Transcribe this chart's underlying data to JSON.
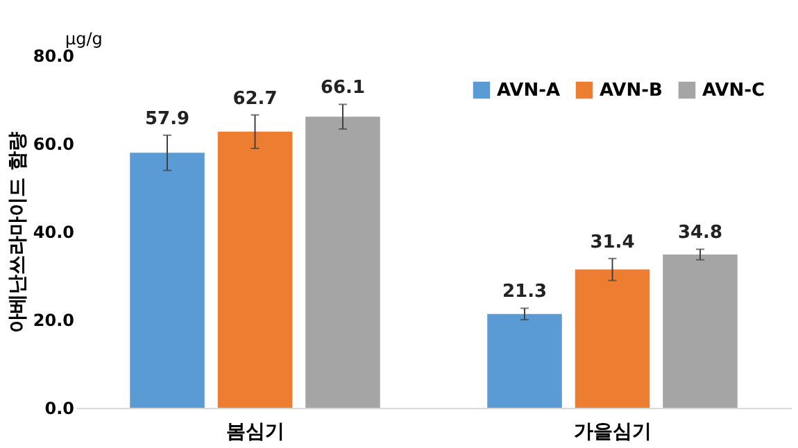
{
  "chart_data": {
    "type": "bar",
    "categories": [
      "봄심기",
      "가을심기"
    ],
    "ylabel": "아베난쓰라마이드 함량",
    "annotations": [
      "μg/g"
    ],
    "series": [
      {
        "name": "AVN-A",
        "color": "#5b9bd5",
        "values": [
          57.9,
          21.3
        ],
        "errors": [
          4.0,
          1.3
        ]
      },
      {
        "name": "AVN-B",
        "color": "#ed7d31",
        "values": [
          62.7,
          31.4
        ],
        "errors": [
          3.8,
          2.5
        ]
      },
      {
        "name": "AVN-C",
        "color": "#a5a5a5",
        "values": [
          66.1,
          34.8
        ],
        "errors": [
          2.8,
          1.2
        ]
      }
    ],
    "ylim": [
      0,
      80
    ],
    "yticks": [
      {
        "value": 0,
        "label": "0.0"
      },
      {
        "value": 20,
        "label": "20.0"
      },
      {
        "value": 40,
        "label": "40.0"
      },
      {
        "value": 60,
        "label": "60.0"
      },
      {
        "value": 80,
        "label": "80.0"
      }
    ],
    "data_labels": true,
    "legend": "top right",
    "grid": false
  }
}
